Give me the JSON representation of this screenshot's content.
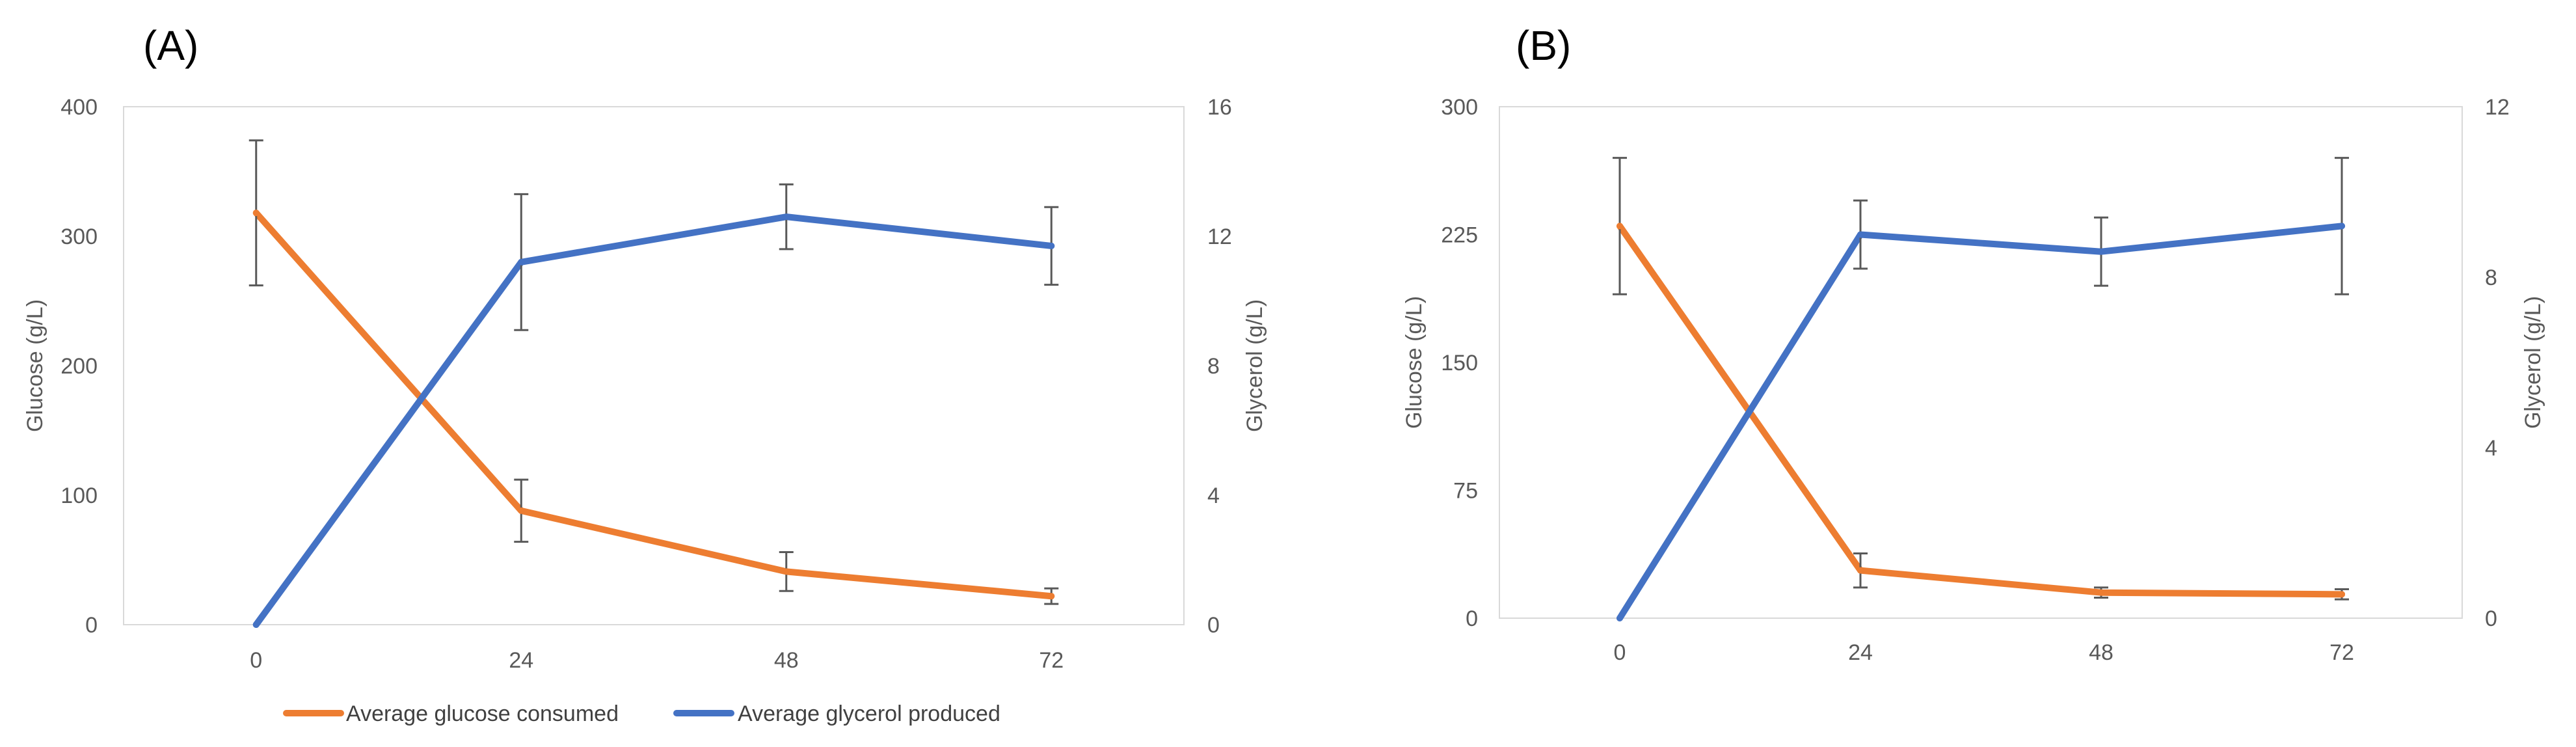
{
  "legend": [
    {
      "label": "Average glucose consumed",
      "color": "#ED7D31"
    },
    {
      "label": "Average glycerol produced",
      "color": "#4472C4"
    }
  ],
  "error_bar_color": "#595959",
  "chart_data": [
    {
      "type": "line",
      "panel_label": "(A)",
      "x": [
        0,
        24,
        48,
        72
      ],
      "categories": [
        "0",
        "24",
        "48",
        "72"
      ],
      "ylabel": "Glucose (g/L)",
      "y2label": "Glycerol (g/L)",
      "ylim": [
        0,
        400
      ],
      "y2lim": [
        0,
        16
      ],
      "y_ticks": [
        0,
        100,
        200,
        300,
        400
      ],
      "y2_ticks": [
        0,
        4,
        8,
        12,
        16
      ],
      "series": [
        {
          "name": "Average glucose consumed",
          "axis": "left",
          "values": [
            318,
            88,
            41,
            22
          ],
          "errors": [
            56,
            24,
            15,
            6
          ]
        },
        {
          "name": "Average glycerol produced",
          "axis": "right",
          "values": [
            0,
            11.2,
            12.6,
            11.7
          ],
          "errors": [
            0,
            2.1,
            1.0,
            1.2
          ]
        }
      ]
    },
    {
      "type": "line",
      "panel_label": "(B)",
      "x": [
        0,
        24,
        48,
        72
      ],
      "categories": [
        "0",
        "24",
        "48",
        "72"
      ],
      "ylabel": "Glucose (g/L)",
      "y2label": "Glycerol (g/L)",
      "ylim": [
        0,
        300
      ],
      "y2lim": [
        0,
        12
      ],
      "y_ticks": [
        0,
        75,
        150,
        225,
        300
      ],
      "y2_ticks": [
        0,
        4,
        8,
        12
      ],
      "series": [
        {
          "name": "Average glucose consumed",
          "axis": "left",
          "values": [
            230,
            28,
            15,
            14
          ],
          "errors": [
            40,
            10,
            3,
            3
          ]
        },
        {
          "name": "Average glycerol produced",
          "axis": "right",
          "values": [
            0,
            9.0,
            8.6,
            9.2
          ],
          "errors": [
            0,
            0.8,
            0.8,
            1.6
          ]
        }
      ]
    }
  ]
}
